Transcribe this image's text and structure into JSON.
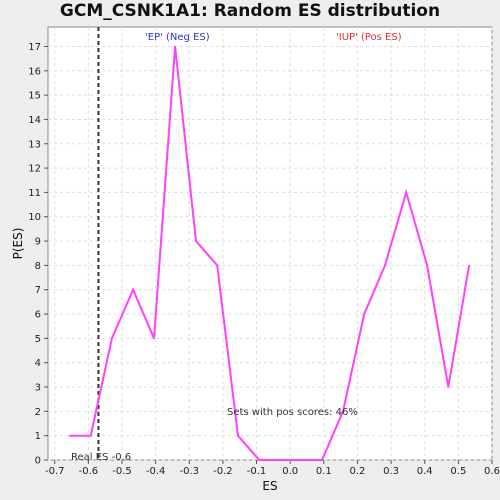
{
  "chart_data": {
    "type": "line",
    "title": "GCM_CSNK1A1: Random ES distribution",
    "xlabel": "ES",
    "ylabel": "P(ES)",
    "xlim": [
      -0.72,
      0.6
    ],
    "ylim": [
      0,
      17.8
    ],
    "x_ticks": [
      "-0.7",
      "-0.6",
      "-0.5",
      "-0.4",
      "-0.3",
      "-0.2",
      "-0.1",
      "0.0",
      "0.1",
      "0.2",
      "0.3",
      "0.4",
      "0.5",
      "0.6"
    ],
    "y_ticks": [
      "0",
      "1",
      "2",
      "3",
      "4",
      "5",
      "6",
      "7",
      "8",
      "9",
      "10",
      "11",
      "12",
      "13",
      "14",
      "15",
      "16",
      "17"
    ],
    "grid": true,
    "series": [
      {
        "color": "#ff40ff",
        "x": [
          -0.655,
          -0.593,
          -0.53,
          -0.467,
          -0.405,
          -0.342,
          -0.28,
          -0.217,
          -0.155,
          -0.092,
          -0.03,
          0.032,
          0.095,
          0.157,
          0.22,
          0.282,
          0.345,
          0.407,
          0.47,
          0.532
        ],
        "y": [
          1,
          1,
          5,
          7,
          5,
          17,
          9,
          8,
          1,
          0,
          0,
          0,
          0,
          2,
          6,
          8,
          11,
          8,
          3,
          8
        ]
      }
    ],
    "real_es": -0.57,
    "annotations": {
      "neg_label": "'EP' (Neg ES)",
      "pos_label": "'IUP' (Pos ES)",
      "real_es_label": "Real ES -0.6",
      "sets_label": "Sets with pos scores: 46%"
    },
    "colors": {
      "line": "#ff40ff",
      "neg_label": "#3333cc",
      "pos_label": "#e03030",
      "grid": "#dddddd",
      "real_es_line": "#333333"
    }
  }
}
